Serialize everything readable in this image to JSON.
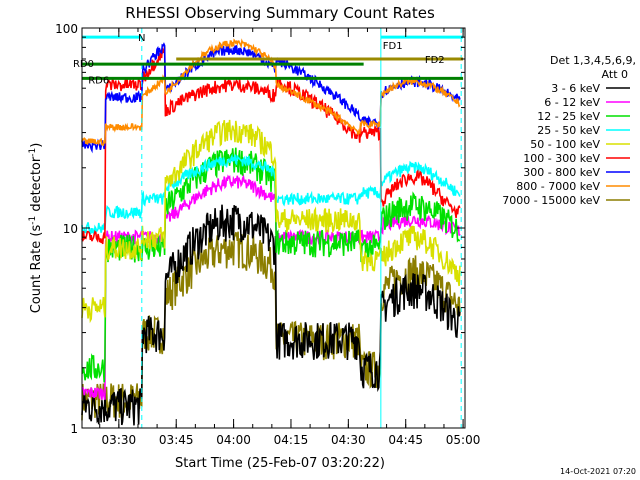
{
  "chart_data": {
    "type": "line",
    "title": "RHESSI Observing Summary Count Rates",
    "xlabel": "Start Time (25-Feb-07 03:20:22)",
    "ylabel_main": "Count Rate (s",
    "ylabel_sup": "-1",
    "ylabel_mid": " detector",
    "ylabel_end": ")",
    "yscale": "log",
    "ylim": [
      1,
      100
    ],
    "xlim": [
      "03:20:22",
      "05:00:30"
    ],
    "y_tick_labels": [
      "1",
      "10",
      "100"
    ],
    "x_ticks": [
      "03:30",
      "03:45",
      "04:00",
      "04:15",
      "04:30",
      "04:45",
      "05:00"
    ],
    "legend_header": [
      "Det 1,3,4,5,6,9,",
      "Att 0"
    ],
    "legend_placement": "right",
    "series": [
      {
        "name": "3 - 6 keV",
        "color": "#000000"
      },
      {
        "name": "6 - 12 keV",
        "color": "#ff00ff"
      },
      {
        "name": "12 - 25 keV",
        "color": "#00e000"
      },
      {
        "name": "25 - 50 keV",
        "color": "#00ffff"
      },
      {
        "name": "50 - 100 keV",
        "color": "#d8e000"
      },
      {
        "name": "100 - 300 keV",
        "color": "#ff0000"
      },
      {
        "name": "300 - 800 keV",
        "color": "#0000ff"
      },
      {
        "name": "800 - 7000 keV",
        "color": "#ff8c00"
      },
      {
        "name": "7000 - 15000 keV",
        "color": "#8b7d00"
      }
    ],
    "flags": [
      {
        "label": "N",
        "color": "#00ffff",
        "level": 90,
        "start": "03:20:22",
        "end": "03:36:00"
      },
      {
        "label": "FD1",
        "color": "#00ffff",
        "level": 90,
        "start": "04:38:30",
        "end": "05:00:00"
      },
      {
        "label": "FD2",
        "color": "#9a8a00",
        "level": 70,
        "start": "03:45:00",
        "end": "05:00:00"
      },
      {
        "label": "RD0",
        "color": "#008000",
        "level": 66,
        "start": "03:20:22",
        "end": "04:34:00"
      },
      {
        "label": "RD6",
        "color": "#008000",
        "level": 56,
        "start": "03:20:22",
        "end": "05:00:00"
      }
    ],
    "boundaries": [
      "03:26:30",
      "03:36:00",
      "03:42:00",
      "04:11:00",
      "04:33:00",
      "04:38:30",
      "04:59:30"
    ],
    "grid": false
  },
  "footer": {
    "timestamp": "14-Oct-2021 07:20"
  }
}
